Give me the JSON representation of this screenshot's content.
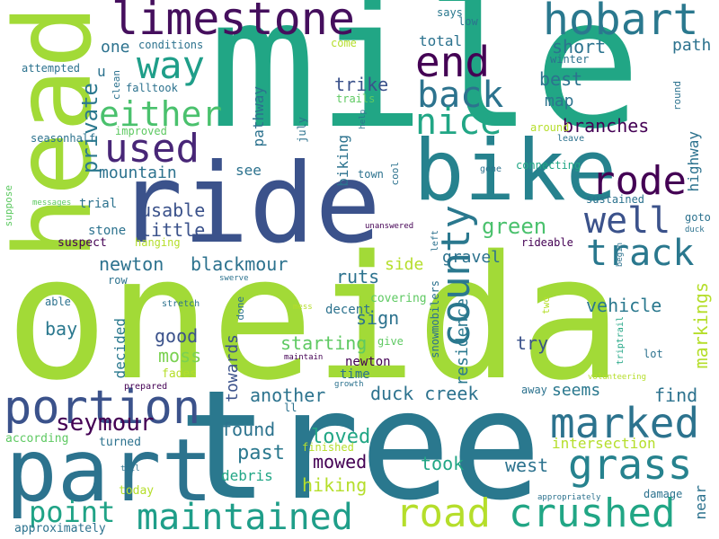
{
  "cloud": {
    "words": [
      {
        "text": "mile",
        "color": "#21a685"
      },
      {
        "text": "oneida",
        "color": "#a2da37"
      },
      {
        "text": "tree",
        "color": "#2a788e"
      },
      {
        "text": "ride",
        "color": "#3b528b"
      },
      {
        "text": "bike",
        "color": "#26828e"
      },
      {
        "text": "head",
        "color": "#a2da37"
      },
      {
        "text": "part",
        "color": "#2c738e"
      },
      {
        "text": "limestone",
        "color": "#450f5d"
      },
      {
        "text": "hobart",
        "color": "#2a788e"
      },
      {
        "text": "way",
        "color": "#1f9e89"
      },
      {
        "text": "end",
        "color": "#440154"
      },
      {
        "text": "either",
        "color": "#4ac16d"
      },
      {
        "text": "back",
        "color": "#2c738e"
      },
      {
        "text": "nice",
        "color": "#21a685"
      },
      {
        "text": "used",
        "color": "#482677"
      },
      {
        "text": "county",
        "color": "#2a788e"
      },
      {
        "text": "well",
        "color": "#3b528b"
      },
      {
        "text": "rode",
        "color": "#440154"
      },
      {
        "text": "portion",
        "color": "#3b528b"
      },
      {
        "text": "marked",
        "color": "#2c738e"
      },
      {
        "text": "grass",
        "color": "#26828e"
      },
      {
        "text": "track",
        "color": "#2a788e"
      },
      {
        "text": "road",
        "color": "#b5de2b"
      },
      {
        "text": "crushed",
        "color": "#21a685"
      },
      {
        "text": "maintained",
        "color": "#1f9e89"
      },
      {
        "text": "point",
        "color": "#20a386"
      },
      {
        "text": "seymour",
        "color": "#440154"
      },
      {
        "text": "newton",
        "color": "#2c728e"
      },
      {
        "text": "blackmour",
        "color": "#2c728e"
      },
      {
        "text": "duck creek",
        "color": "#2c728e"
      },
      {
        "text": "green",
        "color": "#4ac16d"
      },
      {
        "text": "private",
        "color": "#2a788e"
      },
      {
        "text": "branches",
        "color": "#440154"
      },
      {
        "text": "short",
        "color": "#2c738e"
      },
      {
        "text": "best",
        "color": "#2c738e"
      },
      {
        "text": "map",
        "color": "#2c738e"
      },
      {
        "text": "path",
        "color": "#2c728e"
      },
      {
        "text": "mountain",
        "color": "#2c728e"
      },
      {
        "text": "usable",
        "color": "#3b528b"
      },
      {
        "text": "little",
        "color": "#3b528b"
      },
      {
        "text": "trike",
        "color": "#3b528b"
      },
      {
        "text": "starting",
        "color": "#5ec962"
      },
      {
        "text": "towards",
        "color": "#3b528b"
      },
      {
        "text": "loved",
        "color": "#21a685"
      },
      {
        "text": "found",
        "color": "#2c738e"
      },
      {
        "text": "mowed",
        "color": "#440154"
      },
      {
        "text": "hiking",
        "color": "#b5de2b"
      },
      {
        "text": "another",
        "color": "#2c738e"
      },
      {
        "text": "past",
        "color": "#2a788e"
      },
      {
        "text": "took",
        "color": "#21a685"
      },
      {
        "text": "west",
        "color": "#2c728e"
      },
      {
        "text": "sign",
        "color": "#2c728e"
      },
      {
        "text": "good",
        "color": "#3b528b"
      },
      {
        "text": "moss",
        "color": "#7ad151"
      },
      {
        "text": "try",
        "color": "#3b528b"
      },
      {
        "text": "seems",
        "color": "#2a788e"
      },
      {
        "text": "find",
        "color": "#2c728e"
      },
      {
        "text": "vehicle",
        "color": "#2a788e"
      },
      {
        "text": "markings",
        "color": "#b5de2b"
      },
      {
        "text": "intersection",
        "color": "#b5de2b"
      },
      {
        "text": "gravel",
        "color": "#2c728e"
      },
      {
        "text": "side",
        "color": "#b5de2b"
      },
      {
        "text": "ruts",
        "color": "#2c728e"
      },
      {
        "text": "decent",
        "color": "#2c728e"
      },
      {
        "text": "bay",
        "color": "#2a788e"
      },
      {
        "text": "decided",
        "color": "#2a788e"
      },
      {
        "text": "residence",
        "color": "#2a788e"
      },
      {
        "text": "pathway",
        "color": "#2c728e"
      },
      {
        "text": "biking",
        "color": "#2c728e"
      },
      {
        "text": "highway",
        "color": "#2c728e"
      },
      {
        "text": "near",
        "color": "#2c728e"
      },
      {
        "text": "total",
        "color": "#2c728e"
      },
      {
        "text": "one",
        "color": "#2c728e"
      },
      {
        "text": "see",
        "color": "#2c728e"
      },
      {
        "text": "trial",
        "color": "#2c728e"
      },
      {
        "text": "stone",
        "color": "#2c728e"
      },
      {
        "text": "suspect",
        "color": "#440154"
      },
      {
        "text": "covering",
        "color": "#5ec962"
      },
      {
        "text": "newton",
        "color": "#440154"
      },
      {
        "text": "time",
        "color": "#2c728e"
      },
      {
        "text": "fades",
        "color": "#b5de2b"
      },
      {
        "text": "debris",
        "color": "#21a685"
      },
      {
        "text": "finished",
        "color": "#b5de2b"
      },
      {
        "text": "turned",
        "color": "#2c728e"
      },
      {
        "text": "according",
        "color": "#5ec962"
      },
      {
        "text": "today",
        "color": "#b5de2b"
      },
      {
        "text": "approximately",
        "color": "#2c728e"
      },
      {
        "text": "conditions",
        "color": "#2c728e"
      },
      {
        "text": "come",
        "color": "#b5de2b"
      },
      {
        "text": "says",
        "color": "#2a788e"
      },
      {
        "text": "low",
        "color": "#2c728e"
      },
      {
        "text": "winter",
        "color": "#2c728e"
      },
      {
        "text": "round",
        "color": "#2c728e"
      },
      {
        "text": "attempted",
        "color": "#2c728e"
      },
      {
        "text": "clean",
        "color": "#2c728e"
      },
      {
        "text": "falltook",
        "color": "#2c728e"
      },
      {
        "text": "improved",
        "color": "#5ec962"
      },
      {
        "text": "seasonhalf",
        "color": "#2c728e"
      },
      {
        "text": "trails",
        "color": "#5ec962"
      },
      {
        "text": "july",
        "color": "#2c728e"
      },
      {
        "text": "help",
        "color": "#2c728e"
      },
      {
        "text": "around",
        "color": "#b5de2b"
      },
      {
        "text": "leave",
        "color": "#2c728e"
      },
      {
        "text": "cool",
        "color": "#2c728e"
      },
      {
        "text": "town",
        "color": "#2c728e"
      },
      {
        "text": "gone",
        "color": "#2c728e"
      },
      {
        "text": "connecting",
        "color": "#21a685"
      },
      {
        "text": "sustained",
        "color": "#2c728e"
      },
      {
        "text": "goto",
        "color": "#2c728e"
      },
      {
        "text": "duck",
        "color": "#2c728e"
      },
      {
        "text": "begin",
        "color": "#2c728e"
      },
      {
        "text": "messages",
        "color": "#5ec962"
      },
      {
        "text": "suppose",
        "color": "#5ec962"
      },
      {
        "text": "hanging",
        "color": "#b5de2b"
      },
      {
        "text": "unanswered",
        "color": "#440154"
      },
      {
        "text": "left",
        "color": "#2c728e"
      },
      {
        "text": "rideable",
        "color": "#440154"
      },
      {
        "text": "row",
        "color": "#2c728e"
      },
      {
        "text": "able",
        "color": "#2c728e"
      },
      {
        "text": "swerve",
        "color": "#2c728e"
      },
      {
        "text": "stretch",
        "color": "#2c728e"
      },
      {
        "text": "mess",
        "color": "#b5de2b"
      },
      {
        "text": "done",
        "color": "#2c728e"
      },
      {
        "text": "snowmobilers",
        "color": "#2c728e"
      },
      {
        "text": "two",
        "color": "#b5de2b"
      },
      {
        "text": "give",
        "color": "#5ec962"
      },
      {
        "text": "maintain",
        "color": "#440154"
      },
      {
        "text": "triptrail",
        "color": "#21a685"
      },
      {
        "text": "lot",
        "color": "#2c728e"
      },
      {
        "text": "prepared",
        "color": "#440154"
      },
      {
        "text": "growth",
        "color": "#2c728e"
      },
      {
        "text": "away",
        "color": "#2c728e"
      },
      {
        "text": "ll",
        "color": "#2c728e"
      },
      {
        "text": "volunteering",
        "color": "#b5de2b"
      },
      {
        "text": "tell",
        "color": "#2c728e"
      },
      {
        "text": "appropriately",
        "color": "#2c728e"
      },
      {
        "text": "damage",
        "color": "#2c728e"
      },
      {
        "text": "u",
        "color": "#2c728e"
      }
    ]
  }
}
